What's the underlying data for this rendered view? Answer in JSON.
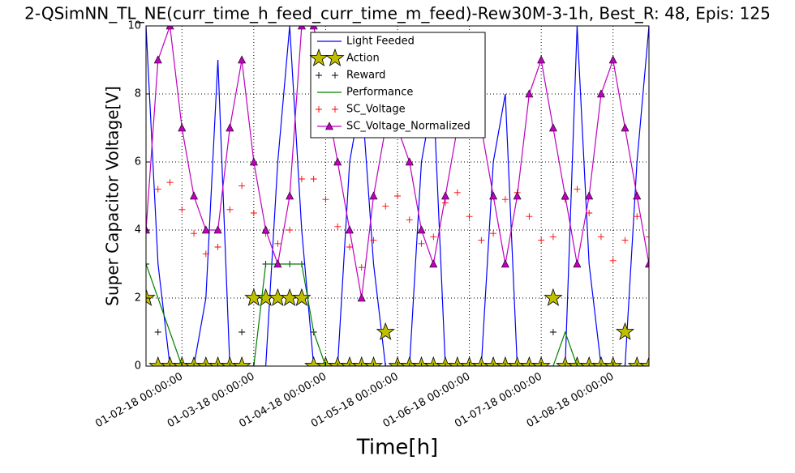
{
  "chart_data": {
    "type": "line",
    "title": "2-QSimNN_TL_NE(curr_time_h_feed_curr_time_m_feed)-Rew30M-3-1h, Best_R: 48, Epis: 125",
    "x_label": "Time[h]",
    "y_label": "Super Capacitor Voltage[V]",
    "x": [
      "01-01-18 12:00:00",
      "01-01-18 16:00:00",
      "01-01-18 20:00:00",
      "01-02-18 00:00:00",
      "01-02-18 04:00:00",
      "01-02-18 08:00:00",
      "01-02-18 12:00:00",
      "01-02-18 16:00:00",
      "01-02-18 20:00:00",
      "01-03-18 00:00:00",
      "01-03-18 04:00:00",
      "01-03-18 08:00:00",
      "01-03-18 12:00:00",
      "01-03-18 16:00:00",
      "01-03-18 20:00:00",
      "01-04-18 00:00:00",
      "01-04-18 04:00:00",
      "01-04-18 08:00:00",
      "01-04-18 12:00:00",
      "01-04-18 16:00:00",
      "01-04-18 20:00:00",
      "01-05-18 00:00:00",
      "01-05-18 04:00:00",
      "01-05-18 08:00:00",
      "01-05-18 12:00:00",
      "01-05-18 16:00:00",
      "01-05-18 20:00:00",
      "01-06-18 00:00:00",
      "01-06-18 04:00:00",
      "01-06-18 08:00:00",
      "01-06-18 12:00:00",
      "01-06-18 16:00:00",
      "01-06-18 20:00:00",
      "01-07-18 00:00:00",
      "01-07-18 04:00:00",
      "01-07-18 08:00:00",
      "01-07-18 12:00:00",
      "01-07-18 16:00:00",
      "01-07-18 20:00:00",
      "01-08-18 00:00:00",
      "01-08-18 04:00:00",
      "01-08-18 08:00:00",
      "01-08-18 12:00:00"
    ],
    "xlim": [
      "01-01-18 12:00:00",
      "01-08-18 12:00:00"
    ],
    "xticks": [
      "01-02-18 00:00:00",
      "01-03-18 00:00:00",
      "01-04-18 00:00:00",
      "01-05-18 00:00:00",
      "01-06-18 00:00:00",
      "01-07-18 00:00:00",
      "01-08-18 00:00:00"
    ],
    "ylim": [
      0,
      10
    ],
    "yticks": [
      0,
      2,
      4,
      6,
      8,
      10
    ],
    "grid": true,
    "legend": "upper center",
    "series": [
      {
        "name": "Light Feeded",
        "color": "#0000ff",
        "line": true,
        "marker": "none",
        "values": [
          10,
          3,
          0,
          0,
          0,
          2,
          9,
          0,
          0,
          0,
          0,
          6,
          10,
          4,
          0,
          0,
          0,
          6,
          8,
          3,
          0,
          0,
          0,
          6,
          8,
          0,
          0,
          0,
          0,
          6,
          8,
          0,
          0,
          0,
          0,
          0,
          10,
          3,
          0,
          0,
          0,
          6,
          10
        ]
      },
      {
        "name": "Action",
        "color": "#bfbf00",
        "line": false,
        "marker": "star",
        "values": [
          2,
          0,
          0,
          0,
          0,
          0,
          0,
          0,
          0,
          2,
          2,
          2,
          2,
          2,
          0,
          0,
          0,
          0,
          0,
          0,
          1,
          0,
          0,
          0,
          0,
          0,
          0,
          0,
          0,
          0,
          0,
          0,
          0,
          0,
          2,
          0,
          0,
          0,
          0,
          0,
          1,
          0,
          0
        ]
      },
      {
        "name": "Reward",
        "color": "#000000",
        "line": false,
        "marker": "plus",
        "values": [
          3,
          1,
          0,
          0,
          0,
          0,
          0,
          0,
          1,
          0,
          3,
          3,
          3,
          3,
          1,
          0,
          0,
          0,
          0,
          0,
          0,
          0,
          0,
          0,
          0,
          0,
          0,
          0,
          0,
          0,
          0,
          0,
          0,
          0,
          1,
          0,
          0,
          0,
          0,
          0,
          0,
          0,
          0
        ]
      },
      {
        "name": "Performance",
        "color": "#008000",
        "line": true,
        "marker": "none",
        "values": [
          3,
          2,
          1,
          0,
          0,
          0,
          0,
          0,
          0,
          0,
          3,
          3,
          3,
          3,
          1,
          0,
          0,
          0,
          0,
          0,
          0,
          0,
          0,
          0,
          0,
          0,
          0,
          0,
          0,
          0,
          0,
          0,
          0,
          0,
          0,
          1,
          0,
          0,
          0,
          0,
          0,
          0,
          0
        ]
      },
      {
        "name": "SC_Voltage",
        "color": "#ff0000",
        "line": false,
        "marker": "plus",
        "values": [
          4.0,
          5.2,
          5.4,
          4.6,
          3.9,
          3.3,
          3.5,
          4.6,
          5.3,
          4.5,
          3.9,
          3.6,
          4.0,
          5.5,
          5.5,
          4.9,
          4.1,
          3.5,
          2.9,
          3.7,
          4.7,
          5.0,
          4.3,
          3.6,
          3.8,
          4.8,
          5.1,
          4.4,
          3.7,
          3.9,
          4.9,
          5.1,
          4.4,
          3.7,
          3.8,
          4.9,
          5.2,
          4.5,
          3.8,
          3.1,
          3.7,
          4.4,
          3.8
        ]
      },
      {
        "name": "SC_Voltage_Normalized",
        "color": "#bf00bf",
        "line": true,
        "marker": "triangle",
        "values": [
          4,
          9,
          10,
          7,
          5,
          4,
          4,
          7,
          9,
          6,
          4,
          3,
          5,
          10,
          10,
          8,
          6,
          4,
          2,
          5,
          7,
          7,
          6,
          4,
          3,
          5,
          7,
          8,
          7,
          5,
          3,
          5,
          8,
          9,
          7,
          5,
          3,
          5,
          8,
          9,
          7,
          5,
          3
        ]
      }
    ]
  }
}
